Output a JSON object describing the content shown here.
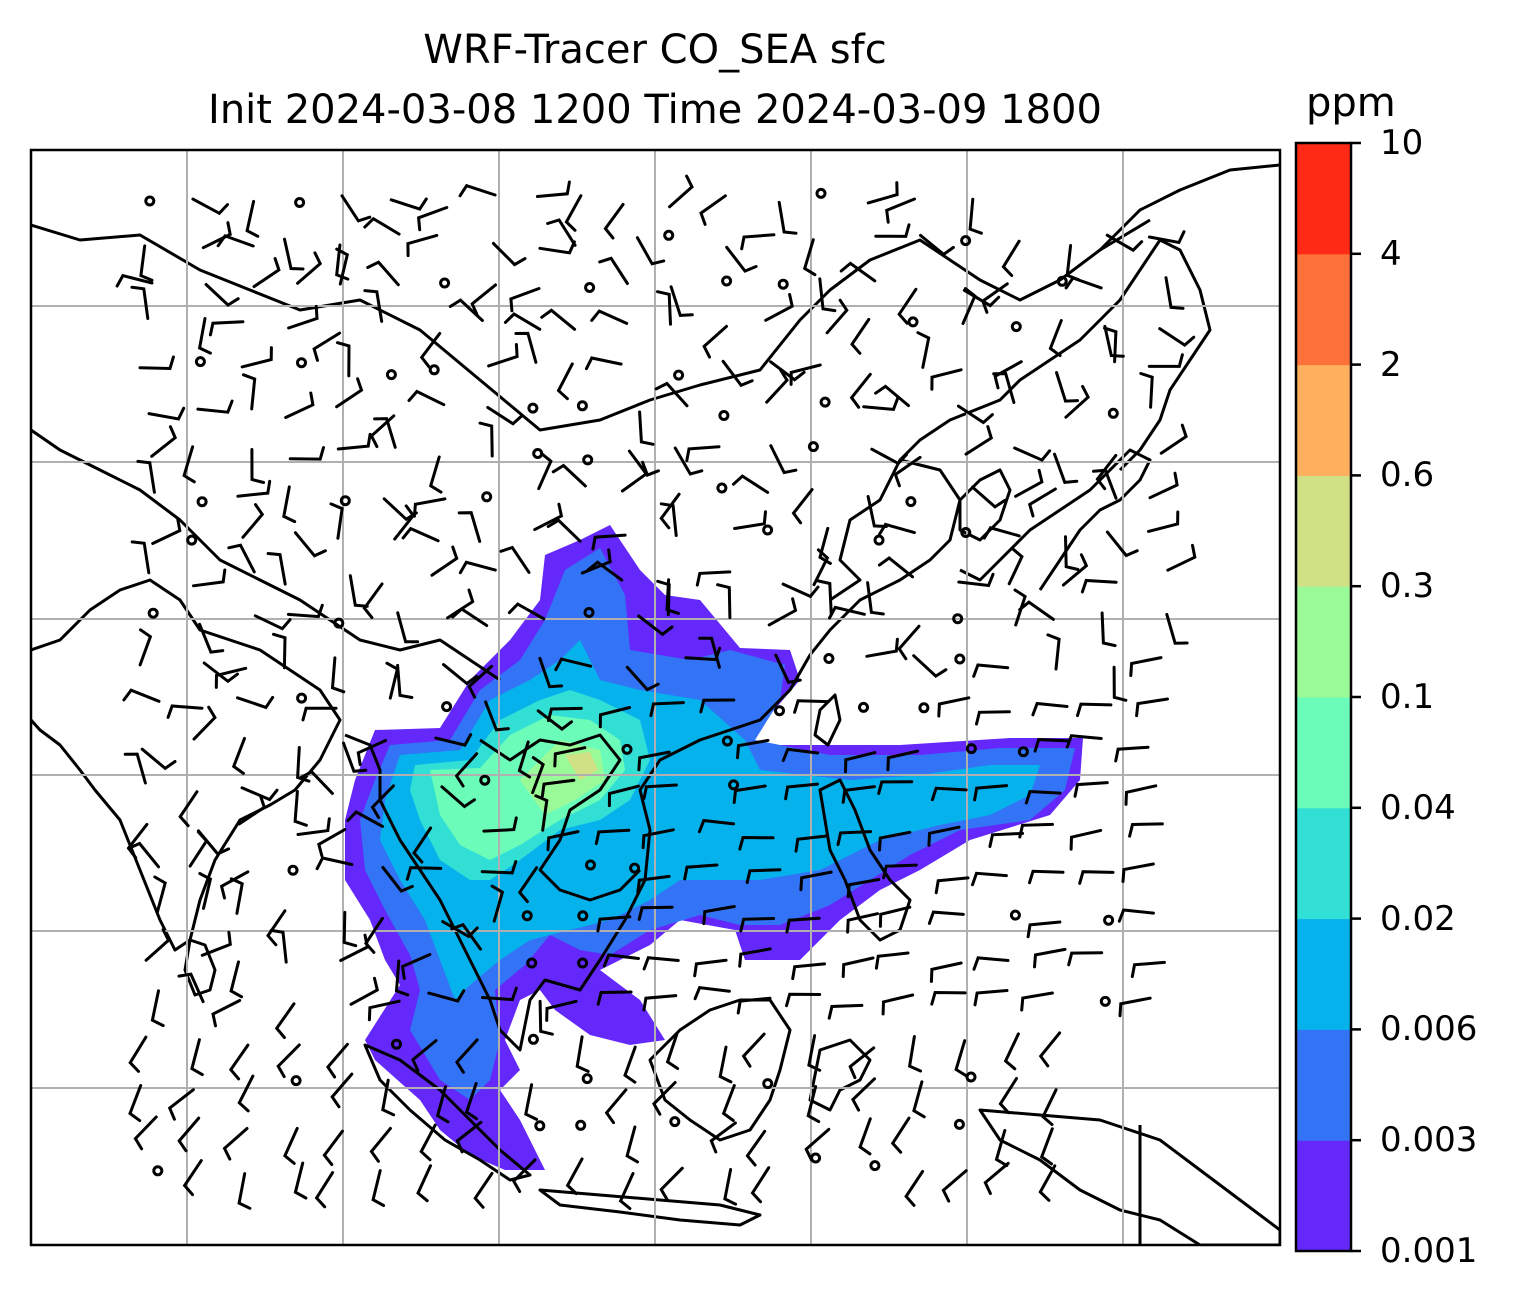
{
  "title_line1": "WRF-Tracer CO_SEA sfc",
  "title_line2": "Init 2024-03-08 1200 Time 2024-03-09 1800",
  "colorbar": {
    "unit": "ppm",
    "levels": [
      "0.001",
      "0.003",
      "0.006",
      "0.02",
      "0.04",
      "0.1",
      "0.3",
      "0.6",
      "2",
      "4",
      "10"
    ],
    "colors": [
      "#6528fb",
      "#3373f5",
      "#06b2ec",
      "#31dfd5",
      "#6cfcb9",
      "#9bfa98",
      "#cfe085",
      "#feb05f",
      "#fe7039",
      "#ff2a16"
    ]
  },
  "map": {
    "field": "CO_SEA surface tracer concentration",
    "overlays": [
      "coastlines",
      "wind-barbs",
      "gridlines"
    ],
    "colors": {
      "land_line": "#000000",
      "grid": "#b0b0b0",
      "background": "#ffffff"
    }
  }
}
